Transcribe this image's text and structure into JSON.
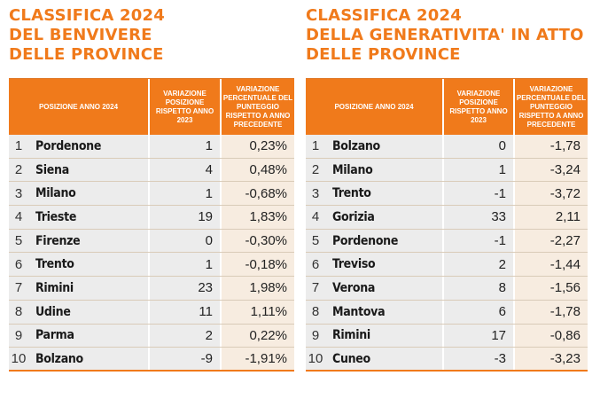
{
  "left": {
    "title": [
      "CLASSIFICA 2024",
      "DEL BENVIVERE",
      "DELLE PROVINCE"
    ],
    "headers": {
      "position": "POSIZIONE ANNO 2024",
      "variation": "VARIAZIONE POSIZIONE RISPETTO ANNO 2023",
      "percent": "VARIAZIONE PERCENTUALE DEL PUNTEGGIO RISPETTO A ANNO PRECEDENTE"
    },
    "rows": [
      {
        "rank": "1",
        "name": "Pordenone",
        "variation": "1",
        "percent": "0,23%"
      },
      {
        "rank": "2",
        "name": "Siena",
        "variation": "4",
        "percent": "0,48%"
      },
      {
        "rank": "3",
        "name": "Milano",
        "variation": "1",
        "percent": "-0,68%"
      },
      {
        "rank": "4",
        "name": "Trieste",
        "variation": "19",
        "percent": "1,83%"
      },
      {
        "rank": "5",
        "name": "Firenze",
        "variation": "0",
        "percent": "-0,30%"
      },
      {
        "rank": "6",
        "name": "Trento",
        "variation": "1",
        "percent": "-0,18%"
      },
      {
        "rank": "7",
        "name": "Rimini",
        "variation": "23",
        "percent": "1,98%"
      },
      {
        "rank": "8",
        "name": "Udine",
        "variation": "11",
        "percent": "1,11%"
      },
      {
        "rank": "9",
        "name": "Parma",
        "variation": "2",
        "percent": "0,22%"
      },
      {
        "rank": "10",
        "name": "Bolzano",
        "variation": "-9",
        "percent": "-1,91%"
      }
    ]
  },
  "right": {
    "title": [
      "CLASSIFICA 2024",
      "DELLA GENERATIVITA' IN ATTO",
      "DELLE PROVINCE"
    ],
    "headers": {
      "position": "POSIZIONE ANNO 2024",
      "variation": "VARIAZIONE POSIZIONE RISPETTO ANNO 2023",
      "percent": "VARIAZIONE PERCENTUALE DEL PUNTEGGIO RISPETTO A ANNO PRECEDENTE"
    },
    "rows": [
      {
        "rank": "1",
        "name": "Bolzano",
        "variation": "0",
        "percent": "-1,78"
      },
      {
        "rank": "2",
        "name": "Milano",
        "variation": "1",
        "percent": "-3,24"
      },
      {
        "rank": "3",
        "name": "Trento",
        "variation": "-1",
        "percent": "-3,72"
      },
      {
        "rank": "4",
        "name": "Gorizia",
        "variation": "33",
        "percent": "2,11"
      },
      {
        "rank": "5",
        "name": "Pordenone",
        "variation": "-1",
        "percent": "-2,27"
      },
      {
        "rank": "6",
        "name": "Treviso",
        "variation": "2",
        "percent": "-1,44"
      },
      {
        "rank": "7",
        "name": "Verona",
        "variation": "8",
        "percent": "-1,56"
      },
      {
        "rank": "8",
        "name": "Mantova",
        "variation": "6",
        "percent": "-1,78"
      },
      {
        "rank": "9",
        "name": "Rimini",
        "variation": "17",
        "percent": "-0,86"
      },
      {
        "rank": "10",
        "name": "Cuneo",
        "variation": "-3",
        "percent": "-3,23"
      }
    ]
  },
  "colors": {
    "accent": "#f07a1b",
    "row_grey": "#ececec",
    "row_cream": "#f7ece0"
  }
}
